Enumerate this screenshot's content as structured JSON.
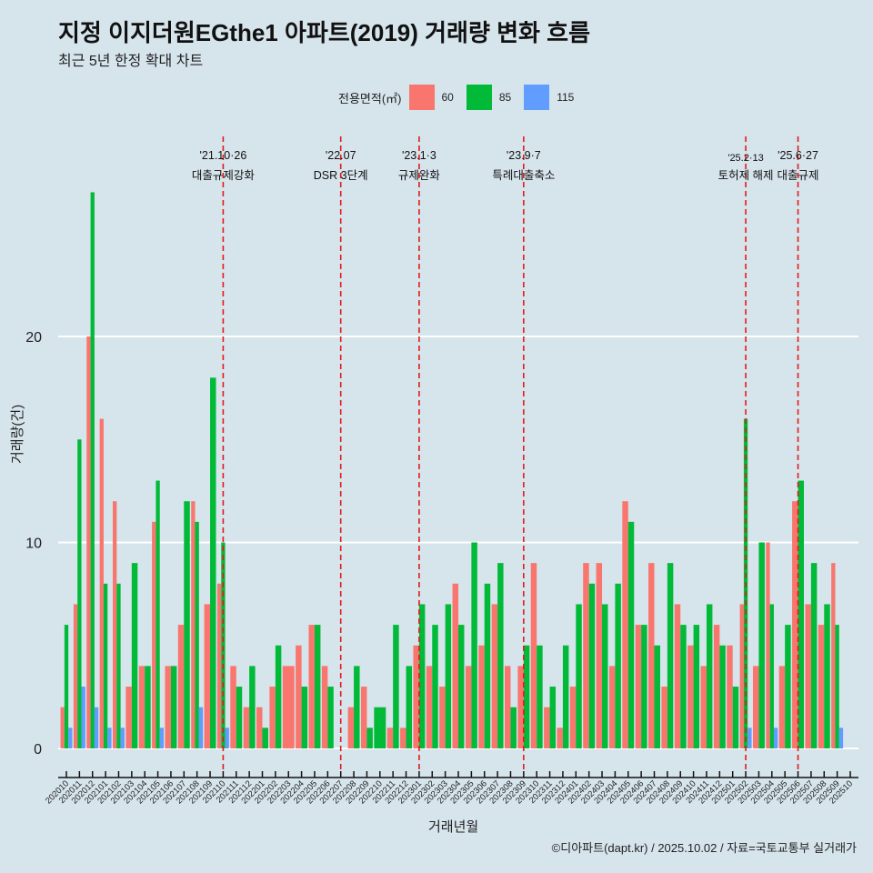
{
  "title": "지정 이지더원EGthe1 아파트(2019) 거래량 변화 흐름",
  "subtitle": "최근 5년 한정 확대 차트",
  "caption": "©디아파트(dapt.kr) / 2025.10.02 / 자료=국토교통부 실거래가",
  "legend": {
    "title": "전용면적(㎡)",
    "items": [
      {
        "label": "60",
        "color": "#f8766d"
      },
      {
        "label": "85",
        "color": "#00ba38"
      },
      {
        "label": "115",
        "color": "#619cff"
      }
    ]
  },
  "chart_data": {
    "type": "bar",
    "title": "지정 이지더원EGthe1 아파트(2019) 거래량 변화 흐름",
    "subtitle": "최근 5년 한정 확대 차트",
    "xlabel": "거래년월",
    "ylabel": "거래량(건)",
    "ylim": [
      -1,
      29
    ],
    "yticks": [
      0,
      10,
      20
    ],
    "grid": "horizontal major",
    "legend_position": "top",
    "categories": [
      "202010",
      "202011",
      "202012",
      "202101",
      "202102",
      "202103",
      "202104",
      "202105",
      "202106",
      "202107",
      "202108",
      "202109",
      "202110",
      "202111",
      "202112",
      "202201",
      "202202",
      "202203",
      "202204",
      "202205",
      "202206",
      "202207",
      "202208",
      "202209",
      "202210",
      "202211",
      "202212",
      "202301",
      "202302",
      "202303",
      "202304",
      "202305",
      "202306",
      "202307",
      "202308",
      "202309",
      "202310",
      "202311",
      "202312",
      "202401",
      "202402",
      "202403",
      "202404",
      "202405",
      "202406",
      "202407",
      "202408",
      "202409",
      "202410",
      "202411",
      "202412",
      "202501",
      "202502",
      "202503",
      "202504",
      "202505",
      "202506",
      "202507",
      "202508",
      "202509",
      "202510"
    ],
    "series": [
      {
        "name": "60",
        "color": "#f8766d",
        "values": [
          2,
          7,
          20,
          16,
          12,
          3,
          4,
          11,
          4,
          6,
          12,
          7,
          8,
          4,
          2,
          2,
          3,
          4,
          5,
          6,
          4,
          0,
          2,
          3,
          0,
          1,
          1,
          5,
          4,
          3,
          8,
          4,
          5,
          7,
          4,
          4,
          9,
          2,
          1,
          3,
          9,
          9,
          4,
          12,
          6,
          9,
          3,
          7,
          5,
          4,
          6,
          5,
          7,
          4,
          10,
          4,
          12,
          7,
          6,
          9,
          0
        ]
      },
      {
        "name": "85",
        "color": "#00ba38",
        "values": [
          6,
          15,
          27,
          8,
          8,
          9,
          4,
          13,
          4,
          12,
          11,
          18,
          10,
          3,
          4,
          1,
          5,
          0,
          3,
          6,
          3,
          0,
          4,
          1,
          2,
          6,
          4,
          7,
          6,
          7,
          6,
          10,
          8,
          9,
          2,
          5,
          5,
          3,
          5,
          7,
          8,
          7,
          8,
          11,
          6,
          5,
          9,
          6,
          6,
          7,
          5,
          3,
          16,
          10,
          7,
          6,
          13,
          9,
          7,
          6,
          0
        ]
      },
      {
        "name": "115",
        "color": "#619cff",
        "values": [
          1,
          3,
          2,
          1,
          1,
          0,
          0,
          1,
          0,
          0,
          2,
          0,
          1,
          0,
          0,
          0,
          0,
          0,
          0,
          0,
          0,
          0,
          0,
          0,
          0,
          0,
          0,
          0,
          0,
          0,
          0,
          0,
          0,
          0,
          0,
          0,
          0,
          0,
          0,
          0,
          0,
          0,
          0,
          0,
          0,
          0,
          0,
          0,
          0,
          0,
          0,
          0,
          1,
          0,
          1,
          0,
          0,
          0,
          0,
          1,
          0
        ]
      }
    ],
    "annotations": [
      {
        "month": "202110",
        "date": "'21.10·26",
        "label": "대출규제강화"
      },
      {
        "month": "202207",
        "date": "'22.07",
        "label": "DSR 3단계"
      },
      {
        "month": "202301",
        "date": "'23.1·3",
        "label": "규제완화"
      },
      {
        "month": "202309",
        "date": "'23.9·7",
        "label": "특례대출축소"
      },
      {
        "month": "202502",
        "date": "'25.2·13",
        "label": "토허제 해제"
      },
      {
        "month": "202506",
        "date": "'25.6·27",
        "label": "대출규제"
      }
    ],
    "annotation_line_color": "#e41a1c"
  }
}
